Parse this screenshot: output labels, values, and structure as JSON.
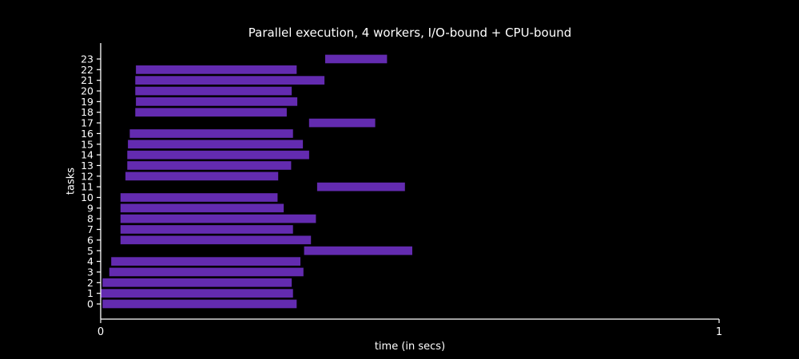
{
  "chart_data": {
    "type": "bar",
    "orientation": "horizontal",
    "title": "Parallel execution, 4 workers, I/O-bound + CPU-bound",
    "xlabel": "time (in secs)",
    "ylabel": "tasks",
    "xlim": [
      0,
      1
    ],
    "xticks": [
      0,
      1
    ],
    "grid": false,
    "legend": "none",
    "colors": {
      "background": "#000000",
      "bar": "#632bb0",
      "axis": "#ffffff",
      "text": "#ffffff"
    },
    "bars": [
      {
        "task": 0,
        "start": 0.003,
        "end": 0.317
      },
      {
        "task": 1,
        "start": 0.0,
        "end": 0.311
      },
      {
        "task": 2,
        "start": 0.003,
        "end": 0.309
      },
      {
        "task": 3,
        "start": 0.014,
        "end": 0.328
      },
      {
        "task": 4,
        "start": 0.017,
        "end": 0.323
      },
      {
        "task": 5,
        "start": 0.329,
        "end": 0.504
      },
      {
        "task": 6,
        "start": 0.032,
        "end": 0.34
      },
      {
        "task": 7,
        "start": 0.032,
        "end": 0.311
      },
      {
        "task": 8,
        "start": 0.032,
        "end": 0.348
      },
      {
        "task": 9,
        "start": 0.032,
        "end": 0.296
      },
      {
        "task": 10,
        "start": 0.032,
        "end": 0.286
      },
      {
        "task": 11,
        "start": 0.35,
        "end": 0.492
      },
      {
        "task": 12,
        "start": 0.04,
        "end": 0.287
      },
      {
        "task": 13,
        "start": 0.043,
        "end": 0.308
      },
      {
        "task": 14,
        "start": 0.043,
        "end": 0.337
      },
      {
        "task": 15,
        "start": 0.044,
        "end": 0.327
      },
      {
        "task": 16,
        "start": 0.047,
        "end": 0.311
      },
      {
        "task": 17,
        "start": 0.337,
        "end": 0.444
      },
      {
        "task": 18,
        "start": 0.056,
        "end": 0.301
      },
      {
        "task": 19,
        "start": 0.057,
        "end": 0.318
      },
      {
        "task": 20,
        "start": 0.056,
        "end": 0.309
      },
      {
        "task": 21,
        "start": 0.056,
        "end": 0.362
      },
      {
        "task": 22,
        "start": 0.057,
        "end": 0.317
      },
      {
        "task": 23,
        "start": 0.363,
        "end": 0.463
      }
    ]
  }
}
